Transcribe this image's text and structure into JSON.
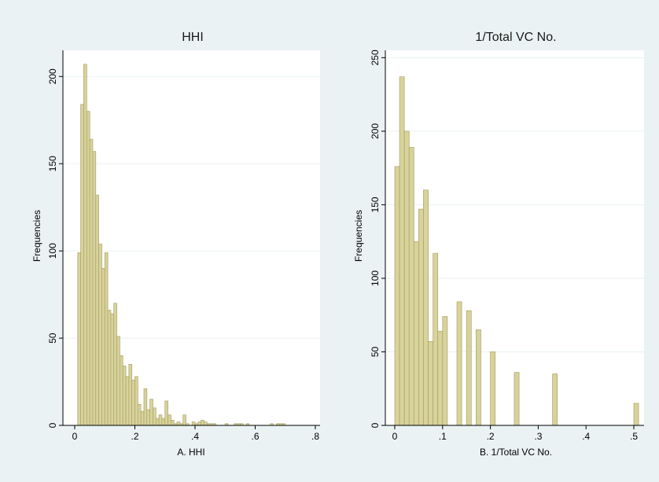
{
  "chart_data": [
    {
      "type": "bar",
      "title": "HHI",
      "xlabel": "A. HHI",
      "ylabel": "Frequencies",
      "xlim": [
        0,
        0.8
      ],
      "ylim": [
        0,
        215
      ],
      "xticks": [
        0,
        0.2,
        0.4,
        0.6,
        0.8
      ],
      "xtick_labels": [
        "0",
        ".2",
        ".4",
        ".6",
        ".8"
      ],
      "yticks": [
        0,
        50,
        100,
        150,
        200
      ],
      "ytick_labels": [
        "0",
        "50",
        "100",
        "150",
        "200"
      ],
      "bin_width": 0.01,
      "x": [
        0.01,
        0.02,
        0.03,
        0.04,
        0.05,
        0.06,
        0.07,
        0.08,
        0.09,
        0.1,
        0.11,
        0.12,
        0.13,
        0.14,
        0.15,
        0.16,
        0.17,
        0.18,
        0.19,
        0.2,
        0.21,
        0.22,
        0.23,
        0.24,
        0.25,
        0.26,
        0.27,
        0.28,
        0.29,
        0.3,
        0.31,
        0.32,
        0.33,
        0.34,
        0.35,
        0.36,
        0.37,
        0.38,
        0.39,
        0.4,
        0.41,
        0.42,
        0.43,
        0.44,
        0.45,
        0.46,
        0.5,
        0.53,
        0.54,
        0.55,
        0.57,
        0.65,
        0.67,
        0.68,
        0.69
      ],
      "values": [
        99,
        184,
        207,
        180,
        164,
        157,
        132,
        104,
        90,
        99,
        66,
        64,
        70,
        51,
        40,
        34,
        28,
        35,
        26,
        28,
        12,
        8,
        21,
        9,
        15,
        10,
        4,
        6,
        4,
        14,
        6,
        3,
        1,
        2,
        1,
        6,
        1,
        0,
        2,
        1,
        2,
        3,
        2,
        1,
        1,
        1,
        1,
        1,
        1,
        1,
        1,
        1,
        1,
        1,
        1
      ]
    },
    {
      "type": "bar",
      "title": "1/Total VC No.",
      "xlabel": "B. 1/Total VC No.",
      "ylabel": "Frequencies",
      "xlim": [
        0,
        0.5
      ],
      "ylim": [
        0,
        255
      ],
      "xticks": [
        0,
        0.1,
        0.2,
        0.3,
        0.4,
        0.5
      ],
      "xtick_labels": [
        "0",
        ".1",
        ".2",
        ".3",
        ".4",
        ".5"
      ],
      "yticks": [
        0,
        50,
        100,
        150,
        200,
        250
      ],
      "ytick_labels": [
        "0",
        "50",
        "100",
        "150",
        "200",
        "250"
      ],
      "bin_width": 0.01,
      "x": [
        0.0,
        0.01,
        0.02,
        0.03,
        0.04,
        0.05,
        0.06,
        0.07,
        0.08,
        0.09,
        0.1,
        0.11,
        0.12,
        0.13,
        0.14,
        0.15,
        0.16,
        0.17,
        0.2,
        0.25,
        0.33,
        0.5
      ],
      "values": [
        176,
        237,
        200,
        189,
        125,
        147,
        160,
        57,
        117,
        64,
        74,
        0,
        0,
        84,
        0,
        78,
        0,
        65,
        50,
        36,
        35,
        15
      ]
    }
  ]
}
